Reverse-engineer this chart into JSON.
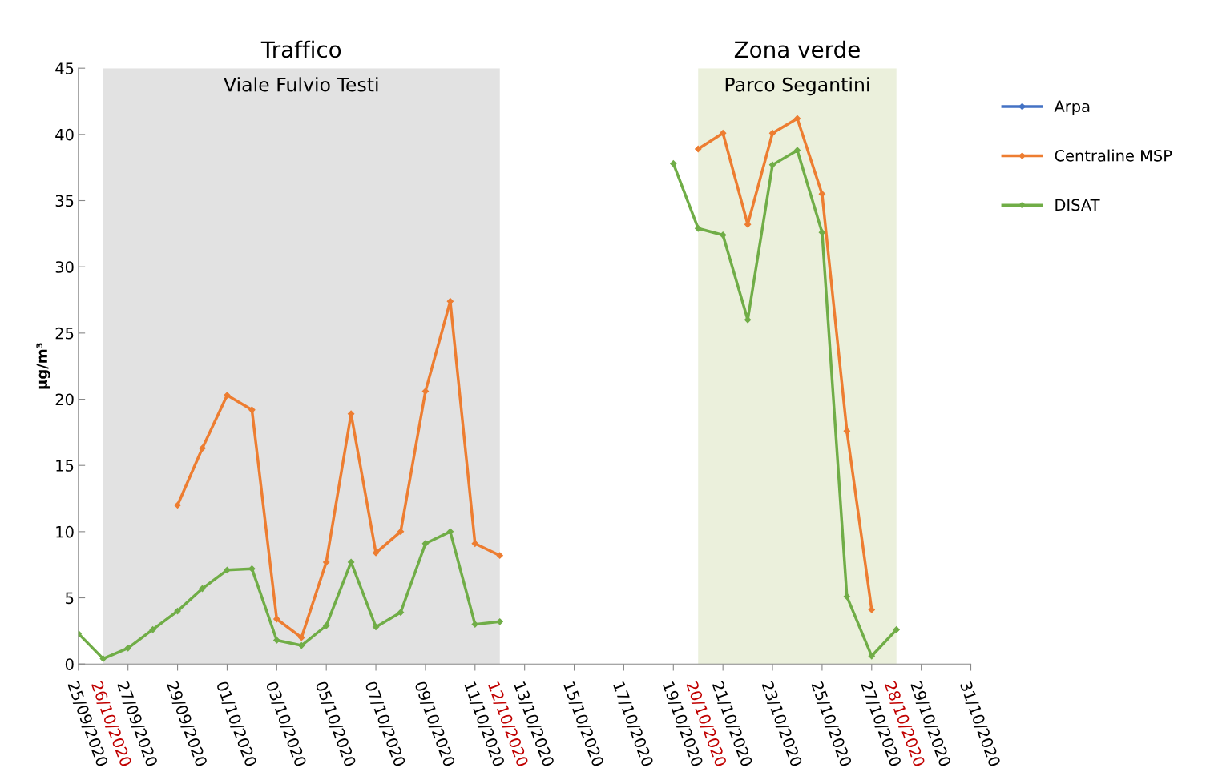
{
  "chart_data": {
    "type": "line",
    "ylabel": "µg/m³",
    "xlim": [
      "2020-09-25",
      "2020-10-31"
    ],
    "xticks": [
      {
        "value": "2020-09-25",
        "label": "25/09/2020"
      },
      {
        "value": "2020-09-27",
        "label": "27/09/2020"
      },
      {
        "value": "2020-09-29",
        "label": "29/09/2020"
      },
      {
        "value": "2020-10-01",
        "label": "01/10/2020"
      },
      {
        "value": "2020-10-03",
        "label": "03/10/2020"
      },
      {
        "value": "2020-10-05",
        "label": "05/10/2020"
      },
      {
        "value": "2020-10-07",
        "label": "07/10/2020"
      },
      {
        "value": "2020-10-09",
        "label": "09/10/2020"
      },
      {
        "value": "2020-10-11",
        "label": "11/10/2020"
      },
      {
        "value": "2020-10-13",
        "label": "13/10/2020"
      },
      {
        "value": "2020-10-15",
        "label": "15/10/2020"
      },
      {
        "value": "2020-10-17",
        "label": "17/10/2020"
      },
      {
        "value": "2020-10-19",
        "label": "19/10/2020"
      },
      {
        "value": "2020-10-21",
        "label": "21/10/2020"
      },
      {
        "value": "2020-10-23",
        "label": "23/10/2020"
      },
      {
        "value": "2020-10-25",
        "label": "25/10/2020"
      },
      {
        "value": "2020-10-27",
        "label": "27/10/2020"
      },
      {
        "value": "2020-10-29",
        "label": "29/10/2020"
      },
      {
        "value": "2020-10-31",
        "label": "31/10/2020"
      }
    ],
    "ylim": [
      0,
      45
    ],
    "yticks": [
      0,
      5,
      10,
      15,
      20,
      25,
      30,
      35,
      40,
      45
    ],
    "grid": false,
    "legend": "right",
    "marker": "diamond",
    "line_style": "solid",
    "bands": [
      {
        "axis": "x",
        "from": "2020-09-26",
        "to": "2020-10-12",
        "label": "Viale Fulvio Testi",
        "color": "#e2e2e2"
      },
      {
        "axis": "x",
        "from": "2020-10-20",
        "to": "2020-10-28",
        "label": "Parco Segantini",
        "color": "#ebf0dc"
      }
    ],
    "annotations": [
      "Traffico",
      "Zona verde",
      {
        "text": "26/10/2020",
        "x": "2020-09-26",
        "y": 0
      },
      {
        "text": "12/10/2020",
        "x": "2020-10-12",
        "y": 0
      },
      {
        "text": "20/10/2020",
        "x": "2020-10-20",
        "y": 0
      },
      {
        "text": "28/10/2020",
        "x": "2020-10-28",
        "y": 0
      }
    ],
    "series": [
      {
        "name": "Arpa",
        "color": "#4472c4"
      },
      {
        "name": "Centraline MSP",
        "color": "#ed7d31",
        "x": [
          "2020-09-29",
          "2020-09-30",
          "2020-10-01",
          "2020-10-02",
          "2020-10-03",
          "2020-10-04",
          "2020-10-05",
          "2020-10-06",
          "2020-10-07",
          "2020-10-08",
          "2020-10-09",
          "2020-10-10",
          "2020-10-11",
          "2020-10-12",
          "2020-10-16",
          "2020-10-20",
          "2020-10-21",
          "2020-10-22",
          "2020-10-23",
          "2020-10-24",
          "2020-10-25",
          "2020-10-26",
          "2020-10-27"
        ],
        "values": [
          12.0,
          16.3,
          20.3,
          19.2,
          3.4,
          2.0,
          7.7,
          18.9,
          8.4,
          10.0,
          20.6,
          27.4,
          9.1,
          8.2,
          null,
          38.9,
          40.1,
          33.2,
          40.1,
          41.2,
          35.5,
          17.6,
          4.1
        ]
      },
      {
        "name": "DISAT",
        "color": "#70ad47",
        "x": [
          "2020-09-25",
          "2020-09-26",
          "2020-09-27",
          "2020-09-28",
          "2020-09-29",
          "2020-09-30",
          "2020-10-01",
          "2020-10-02",
          "2020-10-03",
          "2020-10-04",
          "2020-10-05",
          "2020-10-06",
          "2020-10-07",
          "2020-10-08",
          "2020-10-09",
          "2020-10-10",
          "2020-10-11",
          "2020-10-12",
          "2020-10-16",
          "2020-10-19",
          "2020-10-20",
          "2020-10-21",
          "2020-10-22",
          "2020-10-23",
          "2020-10-24",
          "2020-10-25",
          "2020-10-26",
          "2020-10-27",
          "2020-10-28"
        ],
        "values": [
          2.3,
          0.4,
          1.2,
          2.6,
          4.0,
          5.7,
          7.1,
          7.2,
          1.8,
          1.4,
          2.9,
          7.7,
          2.8,
          3.9,
          9.1,
          10.0,
          3.0,
          3.2,
          null,
          37.8,
          32.9,
          32.4,
          26.0,
          37.7,
          38.8,
          32.6,
          5.1,
          0.6,
          2.6
        ]
      }
    ]
  }
}
